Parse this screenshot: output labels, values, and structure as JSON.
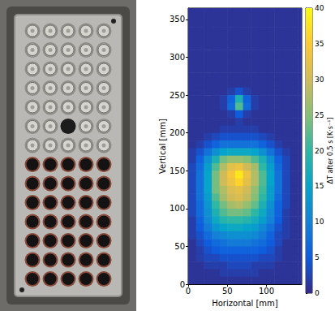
{
  "chart_data": {
    "type": "heatmap",
    "x_label": "Horizontal [mm]",
    "y_label": "Vertical [mm]",
    "xlim": [
      0,
      145
    ],
    "ylim": [
      0,
      365
    ],
    "xticks": [
      0,
      50,
      100
    ],
    "yticks": [
      0,
      50,
      100,
      150,
      200,
      250,
      300,
      350
    ],
    "grid": false,
    "x": [
      5,
      15,
      25,
      35,
      45,
      55,
      65,
      75,
      85,
      95,
      105,
      115,
      125,
      135,
      145
    ],
    "y": [
      365,
      355,
      345,
      335,
      325,
      315,
      305,
      295,
      285,
      275,
      265,
      255,
      245,
      235,
      225,
      215,
      205,
      195,
      185,
      175,
      165,
      155,
      145,
      135,
      125,
      115,
      105,
      95,
      85,
      75,
      65,
      55,
      45,
      35,
      25,
      15,
      5
    ],
    "values": [
      [
        1,
        1,
        1,
        1,
        1,
        1,
        1,
        1,
        1,
        1,
        1,
        1,
        1,
        1,
        1
      ],
      [
        1,
        1,
        1,
        1,
        1,
        1,
        1,
        1,
        1,
        1,
        1,
        1,
        1,
        1,
        1
      ],
      [
        1,
        1,
        1,
        1,
        1,
        1,
        1,
        1,
        1,
        1,
        1,
        1,
        1,
        1,
        1
      ],
      [
        1,
        1,
        1,
        1,
        1,
        1,
        1,
        1,
        1,
        1,
        1,
        1,
        1,
        1,
        1
      ],
      [
        1,
        1,
        1,
        1,
        1,
        1,
        1,
        1,
        1,
        1,
        1,
        1,
        1,
        1,
        1
      ],
      [
        1,
        1,
        1,
        1,
        1,
        1,
        1,
        1,
        1,
        1,
        1,
        1,
        1,
        1,
        1
      ],
      [
        1,
        1,
        1,
        1,
        1,
        1,
        1,
        1,
        1,
        1,
        1,
        1,
        1,
        1,
        1
      ],
      [
        1,
        1,
        1,
        1,
        1,
        1,
        1,
        1,
        1,
        1,
        1,
        1,
        1,
        1,
        1
      ],
      [
        1,
        1,
        1,
        1,
        1,
        1,
        1,
        1,
        1,
        1,
        1,
        1,
        1,
        1,
        1
      ],
      [
        1,
        1,
        1,
        1,
        1,
        1,
        1,
        1,
        1,
        1,
        1,
        1,
        1,
        1,
        1
      ],
      [
        1,
        1,
        1,
        1,
        1,
        1,
        1,
        1,
        1,
        1,
        1,
        1,
        1,
        1,
        1
      ],
      [
        1,
        1,
        1,
        1,
        1,
        2,
        4,
        2,
        1,
        1,
        1,
        1,
        1,
        1,
        1
      ],
      [
        1,
        1,
        1,
        1,
        2,
        6,
        18,
        6,
        2,
        1,
        1,
        1,
        1,
        1,
        1
      ],
      [
        1,
        1,
        1,
        1,
        2,
        7,
        22,
        7,
        2,
        1,
        1,
        1,
        1,
        1,
        1
      ],
      [
        1,
        1,
        1,
        1,
        1,
        2,
        5,
        2,
        1,
        1,
        1,
        1,
        1,
        1,
        1
      ],
      [
        1,
        1,
        1,
        1,
        1,
        1,
        2,
        1,
        1,
        1,
        1,
        1,
        1,
        1,
        1
      ],
      [
        1,
        1,
        1,
        1,
        2,
        2,
        2,
        2,
        2,
        1,
        1,
        1,
        1,
        1,
        1
      ],
      [
        1,
        1,
        2,
        3,
        4,
        4,
        4,
        4,
        4,
        3,
        2,
        1,
        1,
        1,
        1
      ],
      [
        1,
        2,
        4,
        6,
        8,
        8,
        8,
        8,
        8,
        6,
        4,
        2,
        1,
        1,
        1
      ],
      [
        2,
        4,
        8,
        12,
        15,
        16,
        16,
        16,
        15,
        12,
        8,
        4,
        2,
        1,
        1
      ],
      [
        2,
        6,
        12,
        18,
        24,
        26,
        26,
        25,
        22,
        18,
        12,
        6,
        3,
        1,
        1
      ],
      [
        3,
        7,
        14,
        22,
        28,
        32,
        33,
        30,
        27,
        20,
        14,
        7,
        3,
        1,
        1
      ],
      [
        3,
        8,
        15,
        24,
        30,
        34,
        38,
        33,
        28,
        22,
        15,
        8,
        3,
        1,
        1
      ],
      [
        3,
        8,
        15,
        24,
        30,
        33,
        36,
        32,
        28,
        22,
        15,
        8,
        3,
        1,
        1
      ],
      [
        3,
        8,
        15,
        24,
        28,
        31,
        32,
        30,
        26,
        21,
        14,
        8,
        3,
        1,
        1
      ],
      [
        3,
        8,
        14,
        22,
        27,
        30,
        31,
        29,
        25,
        20,
        14,
        7,
        3,
        1,
        1
      ],
      [
        3,
        7,
        13,
        20,
        24,
        27,
        28,
        26,
        23,
        18,
        12,
        6,
        3,
        1,
        1
      ],
      [
        3,
        7,
        12,
        18,
        22,
        24,
        24,
        23,
        20,
        16,
        11,
        6,
        2,
        1,
        1
      ],
      [
        2,
        6,
        11,
        16,
        19,
        20,
        20,
        19,
        17,
        14,
        10,
        5,
        2,
        1,
        1
      ],
      [
        2,
        5,
        9,
        13,
        15,
        16,
        16,
        15,
        14,
        11,
        8,
        4,
        2,
        1,
        1
      ],
      [
        2,
        4,
        7,
        10,
        11,
        12,
        12,
        12,
        11,
        9,
        6,
        3,
        2,
        1,
        1
      ],
      [
        1,
        3,
        5,
        7,
        8,
        9,
        9,
        9,
        8,
        7,
        5,
        3,
        1,
        1,
        1
      ],
      [
        1,
        2,
        4,
        5,
        6,
        6,
        6,
        6,
        6,
        5,
        4,
        2,
        1,
        1,
        1
      ],
      [
        1,
        2,
        3,
        3,
        4,
        4,
        4,
        4,
        4,
        3,
        3,
        2,
        1,
        1,
        1
      ],
      [
        1,
        1,
        2,
        2,
        2,
        3,
        3,
        3,
        2,
        2,
        2,
        1,
        1,
        1,
        1
      ],
      [
        1,
        1,
        1,
        1,
        2,
        2,
        2,
        2,
        2,
        1,
        1,
        1,
        1,
        1,
        1
      ],
      [
        1,
        1,
        1,
        1,
        1,
        1,
        1,
        1,
        1,
        1,
        1,
        1,
        1,
        1,
        1
      ]
    ],
    "colorbar": {
      "label": "ΔT after 0.5 s [K·s⁻¹]",
      "range": [
        0,
        40
      ],
      "ticks": [
        0,
        5,
        10,
        15,
        20,
        25,
        30,
        35,
        40
      ]
    }
  }
}
